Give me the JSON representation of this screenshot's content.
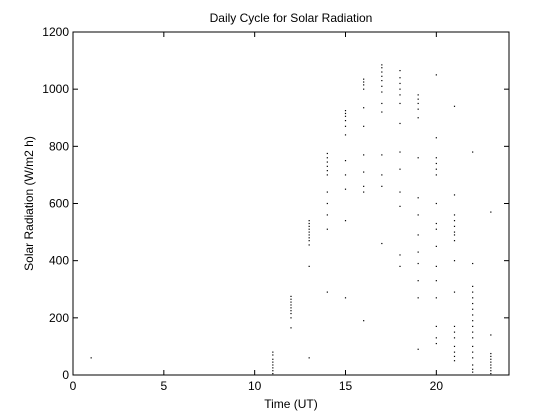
{
  "chart_data": {
    "type": "scatter",
    "title": "Daily Cycle for Solar Radiation",
    "xlabel": "Time (UT)",
    "ylabel": "Solar Radiation (W/m2 h)",
    "xlim": [
      0,
      24
    ],
    "ylim": [
      0,
      1200
    ],
    "xticks": [
      0,
      5,
      10,
      15,
      20
    ],
    "yticks": [
      0,
      200,
      400,
      600,
      800,
      1000,
      1200
    ],
    "grid": false,
    "marker_color": "#000000",
    "series": [
      {
        "points": [
          [
            1,
            60
          ],
          [
            11,
            5
          ],
          [
            11,
            15
          ],
          [
            11,
            25
          ],
          [
            11,
            35
          ],
          [
            11,
            45
          ],
          [
            11,
            55
          ],
          [
            11,
            70
          ],
          [
            11,
            80
          ],
          [
            12,
            165
          ],
          [
            12,
            200
          ],
          [
            12,
            215
          ],
          [
            12,
            225
          ],
          [
            12,
            235
          ],
          [
            12,
            245
          ],
          [
            12,
            255
          ],
          [
            12,
            265
          ],
          [
            12,
            275
          ],
          [
            13,
            60
          ],
          [
            13,
            380
          ],
          [
            13,
            455
          ],
          [
            13,
            470
          ],
          [
            13,
            480
          ],
          [
            13,
            490
          ],
          [
            13,
            500
          ],
          [
            13,
            510
          ],
          [
            13,
            520
          ],
          [
            13,
            530
          ],
          [
            13,
            540
          ],
          [
            14,
            290
          ],
          [
            14,
            510
          ],
          [
            14,
            560
          ],
          [
            14,
            600
          ],
          [
            14,
            640
          ],
          [
            14,
            700
          ],
          [
            14,
            715
          ],
          [
            14,
            730
          ],
          [
            14,
            745
          ],
          [
            14,
            760
          ],
          [
            14,
            775
          ],
          [
            15,
            270
          ],
          [
            15,
            540
          ],
          [
            15,
            650
          ],
          [
            15,
            700
          ],
          [
            15,
            750
          ],
          [
            15,
            840
          ],
          [
            15,
            870
          ],
          [
            15,
            890
          ],
          [
            15,
            905
          ],
          [
            15,
            915
          ],
          [
            15,
            925
          ],
          [
            16,
            190
          ],
          [
            16,
            640
          ],
          [
            16,
            660
          ],
          [
            16,
            710
          ],
          [
            16,
            770
          ],
          [
            16,
            870
          ],
          [
            16,
            935
          ],
          [
            16,
            1000
          ],
          [
            16,
            1015
          ],
          [
            16,
            1025
          ],
          [
            16,
            1035
          ],
          [
            17,
            460
          ],
          [
            17,
            660
          ],
          [
            17,
            700
          ],
          [
            17,
            770
          ],
          [
            17,
            920
          ],
          [
            17,
            950
          ],
          [
            17,
            990
          ],
          [
            17,
            1010
          ],
          [
            17,
            1030
          ],
          [
            17,
            1045
          ],
          [
            17,
            1060
          ],
          [
            17,
            1075
          ],
          [
            17,
            1085
          ],
          [
            18,
            380
          ],
          [
            18,
            420
          ],
          [
            18,
            590
          ],
          [
            18,
            640
          ],
          [
            18,
            720
          ],
          [
            18,
            780
          ],
          [
            18,
            880
          ],
          [
            18,
            950
          ],
          [
            18,
            980
          ],
          [
            18,
            1000
          ],
          [
            18,
            1020
          ],
          [
            18,
            1040
          ],
          [
            18,
            1065
          ],
          [
            19,
            90
          ],
          [
            19,
            270
          ],
          [
            19,
            330
          ],
          [
            19,
            390
          ],
          [
            19,
            430
          ],
          [
            19,
            490
          ],
          [
            19,
            560
          ],
          [
            19,
            620
          ],
          [
            19,
            760
          ],
          [
            19,
            900
          ],
          [
            19,
            930
          ],
          [
            19,
            950
          ],
          [
            19,
            965
          ],
          [
            19,
            980
          ],
          [
            20,
            110
          ],
          [
            20,
            130
          ],
          [
            20,
            170
          ],
          [
            20,
            270
          ],
          [
            20,
            330
          ],
          [
            20,
            380
          ],
          [
            20,
            450
          ],
          [
            20,
            510
          ],
          [
            20,
            530
          ],
          [
            20,
            600
          ],
          [
            20,
            700
          ],
          [
            20,
            720
          ],
          [
            20,
            740
          ],
          [
            20,
            760
          ],
          [
            20,
            830
          ],
          [
            20,
            1050
          ],
          [
            21,
            50
          ],
          [
            21,
            65
          ],
          [
            21,
            80
          ],
          [
            21,
            100
          ],
          [
            21,
            130
          ],
          [
            21,
            150
          ],
          [
            21,
            170
          ],
          [
            21,
            290
          ],
          [
            21,
            400
          ],
          [
            21,
            470
          ],
          [
            21,
            490
          ],
          [
            21,
            500
          ],
          [
            21,
            520
          ],
          [
            21,
            540
          ],
          [
            21,
            560
          ],
          [
            21,
            630
          ],
          [
            21,
            940
          ],
          [
            22,
            10
          ],
          [
            22,
            20
          ],
          [
            22,
            35
          ],
          [
            22,
            60
          ],
          [
            22,
            80
          ],
          [
            22,
            100
          ],
          [
            22,
            130
          ],
          [
            22,
            150
          ],
          [
            22,
            170
          ],
          [
            22,
            190
          ],
          [
            22,
            210
          ],
          [
            22,
            230
          ],
          [
            22,
            250
          ],
          [
            22,
            270
          ],
          [
            22,
            290
          ],
          [
            22,
            310
          ],
          [
            22,
            390
          ],
          [
            22,
            780
          ],
          [
            23,
            5
          ],
          [
            23,
            15
          ],
          [
            23,
            25
          ],
          [
            23,
            35
          ],
          [
            23,
            45
          ],
          [
            23,
            55
          ],
          [
            23,
            65
          ],
          [
            23,
            75
          ],
          [
            23,
            140
          ],
          [
            23,
            570
          ]
        ]
      }
    ]
  }
}
